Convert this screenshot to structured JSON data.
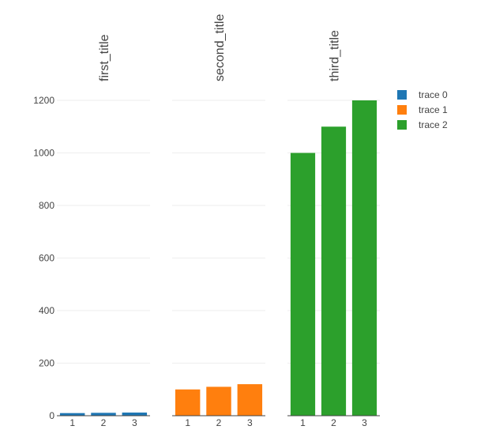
{
  "chart_data": {
    "type": "bar",
    "layout": "three side-by-side subplots sharing y-axis",
    "categories": [
      1,
      2,
      3
    ],
    "ylim": [
      0,
      1200
    ],
    "yticks": [
      0,
      200,
      400,
      600,
      800,
      1000,
      1200
    ],
    "grid": true,
    "legend_placement": "top-right",
    "subplots": [
      {
        "title": "first_title",
        "series_name": "trace 0",
        "values": [
          10,
          11,
          12
        ],
        "color": "#1f77b4"
      },
      {
        "title": "second_title",
        "series_name": "trace 1",
        "values": [
          100,
          110,
          120
        ],
        "color": "#ff7f0e"
      },
      {
        "title": "third_title",
        "series_name": "trace 2",
        "values": [
          1000,
          1100,
          1200
        ],
        "color": "#2ca02c"
      }
    ]
  }
}
